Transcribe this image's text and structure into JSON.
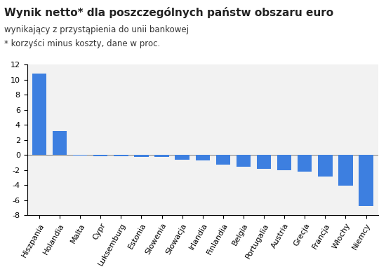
{
  "chart_data": {
    "type": "bar",
    "title": "Wynik netto* dla poszczególnych państw obszaru euro",
    "subtitle": [
      "wynikający z przystąpienia do unii bankowej",
      "* korzyści minus koszty, dane w proc."
    ],
    "categories": [
      "Hiszpania",
      "Holandia",
      "Malta",
      "Cypr",
      "Luksemburg",
      "Estonia",
      "Słowenia",
      "Słowacja",
      "Irlandia",
      "Finlandia",
      "Belgia",
      "Portugalia",
      "Austria",
      "Grecja",
      "Francja",
      "Włochy",
      "Niemcy"
    ],
    "values": [
      10.8,
      3.2,
      -0.1,
      -0.15,
      -0.2,
      -0.25,
      -0.3,
      -0.6,
      -0.7,
      -1.3,
      -1.6,
      -1.8,
      -2.0,
      -2.2,
      -2.9,
      -4.1,
      -6.8
    ],
    "color": "#3d7fe0",
    "ylim": [
      -8,
      12
    ],
    "yticks": [
      -8,
      -6,
      -4,
      -2,
      0,
      2,
      4,
      6,
      8,
      10,
      12
    ],
    "grid": false
  }
}
